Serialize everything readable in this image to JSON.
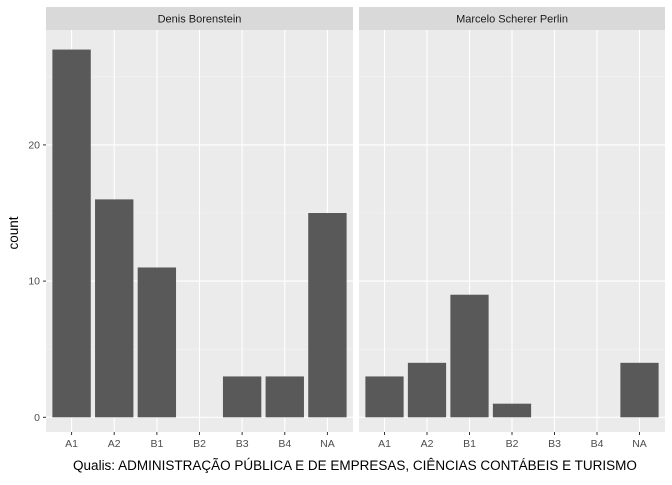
{
  "chart_data": {
    "type": "bar",
    "categories": [
      "A1",
      "A2",
      "B1",
      "B2",
      "B3",
      "B4",
      "NA"
    ],
    "ylabel": "count",
    "xlabel": "Qualis: ADMINISTRAÇÃO PÚBLICA E DE EMPRESAS, CIÊNCIAS CONTÁBEIS E TURISMO",
    "ylim": [
      0,
      27
    ],
    "y_ticks": [
      0,
      10,
      20
    ],
    "grid": true,
    "facets": [
      {
        "name": "Denis Borenstein",
        "values": [
          27,
          16,
          11,
          0,
          3,
          3,
          15
        ]
      },
      {
        "name": "Marcelo Scherer Perlin",
        "values": [
          3,
          4,
          9,
          1,
          0,
          0,
          4
        ]
      }
    ],
    "colors": {
      "bar": "#595959",
      "panel": "#ebebeb",
      "strip": "#d9d9d9"
    }
  }
}
